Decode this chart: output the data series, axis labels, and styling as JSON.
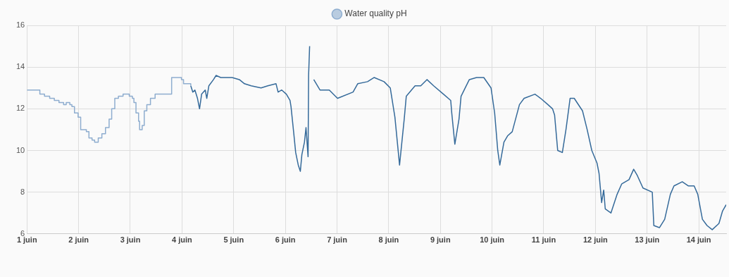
{
  "chart_data": {
    "type": "line",
    "legend": "top",
    "grid": true,
    "marker": "none",
    "line_style": "solid",
    "xlim": [
      1,
      14.53
    ],
    "xticks": [
      {
        "value": 1,
        "label": "1 juin"
      },
      {
        "value": 2,
        "label": "2 juin"
      },
      {
        "value": 3,
        "label": "3 juin"
      },
      {
        "value": 4,
        "label": "4 juin"
      },
      {
        "value": 5,
        "label": "5 juin"
      },
      {
        "value": 6,
        "label": "6 juin"
      },
      {
        "value": 7,
        "label": "7 juin"
      },
      {
        "value": 8,
        "label": "8 juin"
      },
      {
        "value": 9,
        "label": "9 juin"
      },
      {
        "value": 10,
        "label": "10 juin"
      },
      {
        "value": 11,
        "label": "11 juin"
      },
      {
        "value": 12,
        "label": "12 juin"
      },
      {
        "value": 13,
        "label": "13 juin"
      },
      {
        "value": 14,
        "label": "14 juin"
      }
    ],
    "ylim": [
      6,
      16
    ],
    "yticks": [
      6,
      8,
      10,
      12,
      14,
      16
    ],
    "series": [
      {
        "name": "Water quality pH",
        "type": "step",
        "color": "#8eadcf",
        "x": [
          1.0,
          1.21,
          1.25,
          1.34,
          1.44,
          1.53,
          1.62,
          1.71,
          1.76,
          1.83,
          1.87,
          1.92,
          1.99,
          2.04,
          2.15,
          2.2,
          2.26,
          2.31,
          2.38,
          2.45,
          2.52,
          2.59,
          2.64,
          2.7,
          2.77,
          2.86,
          2.98,
          3.04,
          3.07,
          3.11,
          3.16,
          3.18,
          3.23,
          3.27,
          3.32,
          3.39,
          3.48,
          3.6,
          3.79,
          3.8,
          3.99,
          4.03,
          4.1,
          4.17
        ],
        "values": [
          12.9,
          12.9,
          12.7,
          12.6,
          12.5,
          12.4,
          12.3,
          12.2,
          12.3,
          12.2,
          12.1,
          11.8,
          11.6,
          11.0,
          10.9,
          10.6,
          10.5,
          10.4,
          10.6,
          10.8,
          11.1,
          11.5,
          12.0,
          12.5,
          12.6,
          12.7,
          12.6,
          12.5,
          12.3,
          11.8,
          11.4,
          11.0,
          11.2,
          11.9,
          12.2,
          12.5,
          12.7,
          12.7,
          12.7,
          13.5,
          13.4,
          13.2,
          13.2,
          13.1
        ]
      },
      {
        "color": "#356a9a",
        "x": [
          4.17,
          4.21,
          4.25,
          4.3,
          4.34,
          4.38,
          4.45,
          4.48,
          4.52,
          4.61,
          4.66,
          4.75,
          4.86,
          4.97,
          5.11,
          5.21,
          5.34,
          5.53,
          5.66,
          5.82,
          5.86,
          5.93,
          6.02,
          6.09,
          6.11,
          6.16,
          6.2,
          6.25,
          6.29,
          6.32,
          6.37,
          6.4,
          6.44,
          6.45,
          6.47,
          6.5,
          6.55,
          6.67,
          6.85,
          7.01,
          7.31,
          7.4,
          7.59,
          7.72,
          7.91,
          8.03,
          8.12,
          8.21,
          8.3,
          8.34,
          8.51,
          8.62,
          8.74,
          8.87,
          9.06,
          9.2,
          9.22,
          9.28,
          9.36,
          9.4,
          9.56,
          9.7,
          9.84,
          9.98,
          10.05,
          10.11,
          10.15,
          10.23,
          10.3,
          10.39,
          10.53,
          10.62,
          10.83,
          10.94,
          11.08,
          11.17,
          11.21,
          11.27,
          11.36,
          11.43,
          11.51,
          11.59,
          11.75,
          11.84,
          11.93,
          12.03,
          12.07,
          12.12,
          12.16,
          12.19,
          12.3,
          12.42,
          12.51,
          12.65,
          12.74,
          12.81,
          12.92,
          13.1,
          13.13,
          13.24,
          13.34,
          13.45,
          13.52,
          13.68,
          13.8,
          13.91,
          13.98,
          14.07,
          14.16,
          14.26,
          14.39,
          14.46,
          14.53
        ],
        "values": [
          13.1,
          12.8,
          12.9,
          12.5,
          12.0,
          12.7,
          12.9,
          12.5,
          13.1,
          13.4,
          13.6,
          13.5,
          13.5,
          13.5,
          13.4,
          13.2,
          13.1,
          13.0,
          13.1,
          13.2,
          12.8,
          12.9,
          12.7,
          12.4,
          12.1,
          10.9,
          9.9,
          9.3,
          9.0,
          9.8,
          10.4,
          11.1,
          9.7,
          13.6,
          15.0,
          null,
          13.4,
          12.9,
          12.9,
          12.5,
          12.8,
          13.2,
          13.3,
          13.5,
          13.3,
          13.0,
          11.6,
          9.3,
          11.5,
          12.6,
          13.1,
          13.1,
          13.4,
          13.1,
          12.7,
          12.4,
          11.8,
          10.3,
          11.5,
          12.6,
          13.4,
          13.5,
          13.5,
          13.0,
          11.8,
          10.0,
          9.3,
          10.4,
          10.7,
          10.9,
          12.2,
          12.5,
          12.7,
          12.5,
          12.2,
          12.0,
          11.7,
          10.0,
          9.9,
          11.0,
          12.5,
          12.5,
          11.9,
          11.0,
          10.0,
          9.4,
          8.9,
          7.5,
          8.1,
          7.2,
          7.0,
          7.9,
          8.4,
          8.6,
          9.1,
          8.8,
          8.2,
          8.0,
          6.4,
          6.3,
          6.7,
          7.9,
          8.3,
          8.5,
          8.3,
          8.3,
          7.9,
          6.7,
          6.4,
          6.2,
          6.5,
          7.1,
          7.4
        ]
      }
    ]
  }
}
